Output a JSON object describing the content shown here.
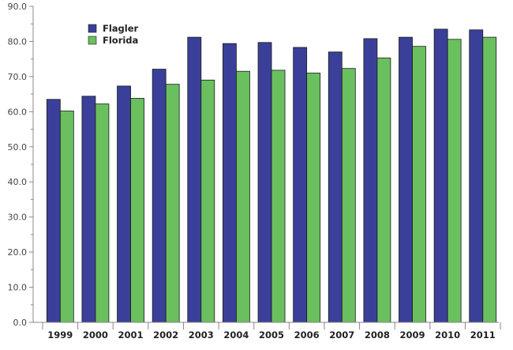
{
  "colors": {
    "flagler": "#3a4099",
    "florida": "#6abf5f",
    "axis": "#888888",
    "bar_edge": "#1a1a1a"
  },
  "chart_data": {
    "type": "bar",
    "title": "",
    "xlabel": "",
    "ylabel": "",
    "categories": [
      "1999",
      "2000",
      "2001",
      "2002",
      "2003",
      "2004",
      "2005",
      "2006",
      "2007",
      "2008",
      "2009",
      "2010",
      "2011"
    ],
    "series": [
      {
        "name": "Flagler",
        "values": [
          63.5,
          64.4,
          67.3,
          72.1,
          81.2,
          79.4,
          79.7,
          78.3,
          77.0,
          80.8,
          81.2,
          83.5,
          83.3
        ]
      },
      {
        "name": "Florida",
        "values": [
          60.2,
          62.2,
          63.8,
          67.8,
          69.0,
          71.5,
          71.8,
          71.0,
          72.3,
          75.3,
          78.6,
          80.6,
          81.2
        ]
      }
    ],
    "ylim": [
      0,
      90
    ],
    "yticks": [
      "0.0",
      "10.0",
      "20.0",
      "30.0",
      "40.0",
      "50.0",
      "60.0",
      "70.0",
      "80.0",
      "90.0"
    ],
    "grid": false,
    "legend_position": "top-left"
  }
}
